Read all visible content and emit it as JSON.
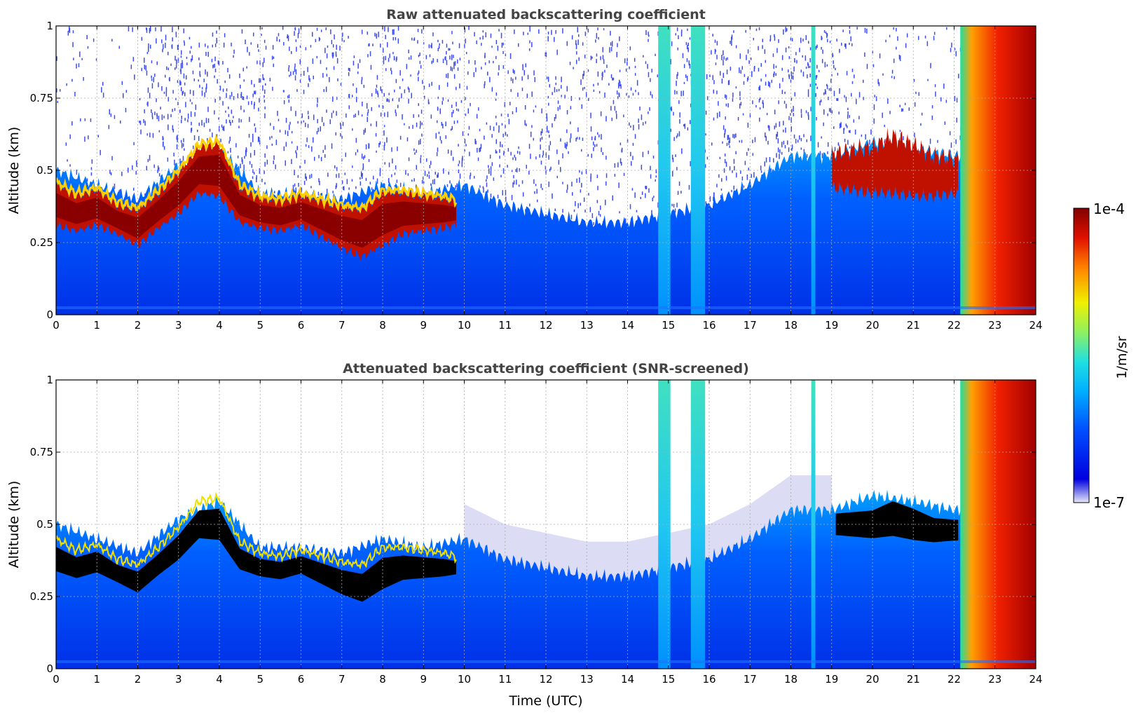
{
  "chart_data": [
    {
      "type": "heatmap",
      "title": "Raw attenuated backscattering coefficient",
      "xlabel": "",
      "ylabel": "Altitude (km)",
      "xlim": [
        0,
        24
      ],
      "ylim": [
        0,
        1
      ],
      "x_ticks": [
        "0",
        "1",
        "2",
        "3",
        "4",
        "5",
        "6",
        "7",
        "8",
        "9",
        "10",
        "11",
        "12",
        "13",
        "14",
        "15",
        "16",
        "17",
        "18",
        "19",
        "20",
        "21",
        "22",
        "23",
        "24"
      ],
      "y_ticks": [
        "0",
        "0.25",
        "0.5",
        "0.75",
        "1"
      ],
      "grid": true,
      "background_layer": {
        "time_utc": [
          0,
          1,
          2,
          3,
          4,
          5,
          6,
          7,
          8,
          9,
          10,
          11,
          12,
          13,
          14,
          15,
          16,
          17,
          18,
          19,
          20,
          21,
          22,
          23,
          24
        ],
        "top_km": [
          0.5,
          0.45,
          0.4,
          0.52,
          0.58,
          0.42,
          0.42,
          0.4,
          0.45,
          0.42,
          0.45,
          0.38,
          0.35,
          0.32,
          0.32,
          0.35,
          0.38,
          0.45,
          0.55,
          0.55,
          0.6,
          0.58,
          0.55,
          0.55,
          0.5
        ]
      },
      "strong_layer": {
        "time_utc": [
          0,
          0.5,
          1,
          1.5,
          2,
          2.5,
          3,
          3.5,
          4,
          4.5,
          5,
          5.5,
          6,
          6.5,
          7,
          7.5,
          8,
          8.5,
          9,
          9.5,
          10
        ],
        "center_km": [
          0.38,
          0.35,
          0.37,
          0.33,
          0.3,
          0.36,
          0.42,
          0.5,
          0.5,
          0.38,
          0.35,
          0.34,
          0.36,
          0.33,
          0.3,
          0.28,
          0.33,
          0.35,
          0.35,
          0.35,
          0.35
        ],
        "half_thickness_km": [
          0.07,
          0.06,
          0.06,
          0.05,
          0.06,
          0.06,
          0.07,
          0.08,
          0.09,
          0.06,
          0.05,
          0.05,
          0.05,
          0.06,
          0.07,
          0.08,
          0.09,
          0.07,
          0.06,
          0.05,
          0.03
        ]
      },
      "evening_layer": {
        "time_utc": [
          19,
          19.5,
          20,
          20.5,
          21,
          21.5,
          22
        ],
        "center_km": [
          0.5,
          0.5,
          0.5,
          0.52,
          0.5,
          0.48,
          0.48
        ],
        "half_thickness_km": [
          0.06,
          0.07,
          0.08,
          0.1,
          0.09,
          0.07,
          0.06
        ]
      },
      "precipitation_columns": [
        {
          "time_start": 14.75,
          "time_end": 15.05
        },
        {
          "time_start": 15.55,
          "time_end": 15.9
        },
        {
          "time_start": 18.5,
          "time_end": 18.6
        },
        {
          "time_start": 22.15,
          "time_end": 24
        }
      ]
    },
    {
      "type": "heatmap",
      "title": "Attenuated backscattering coefficient (SNR-screened)",
      "xlabel": "Time (UTC)",
      "ylabel": "Altitude (km)",
      "xlim": [
        0,
        24
      ],
      "ylim": [
        0,
        1
      ],
      "x_ticks": [
        "0",
        "1",
        "2",
        "3",
        "4",
        "5",
        "6",
        "7",
        "8",
        "9",
        "10",
        "11",
        "12",
        "13",
        "14",
        "15",
        "16",
        "17",
        "18",
        "19",
        "20",
        "21",
        "22",
        "23",
        "24"
      ],
      "y_ticks": [
        "0",
        "0.25",
        "0.5",
        "0.75",
        "1"
      ],
      "grid": true,
      "saturated_color": "#000000"
    }
  ],
  "colorbar": {
    "label": "1/m/sr",
    "max_label": "1e-4",
    "min_label": "1e-7",
    "colormap": "jet",
    "colors": [
      "#e8e8f8",
      "#0000e0",
      "#0050ff",
      "#00b0ff",
      "#20e0e0",
      "#90f060",
      "#f0f000",
      "#ff8000",
      "#e01000",
      "#800000"
    ]
  }
}
